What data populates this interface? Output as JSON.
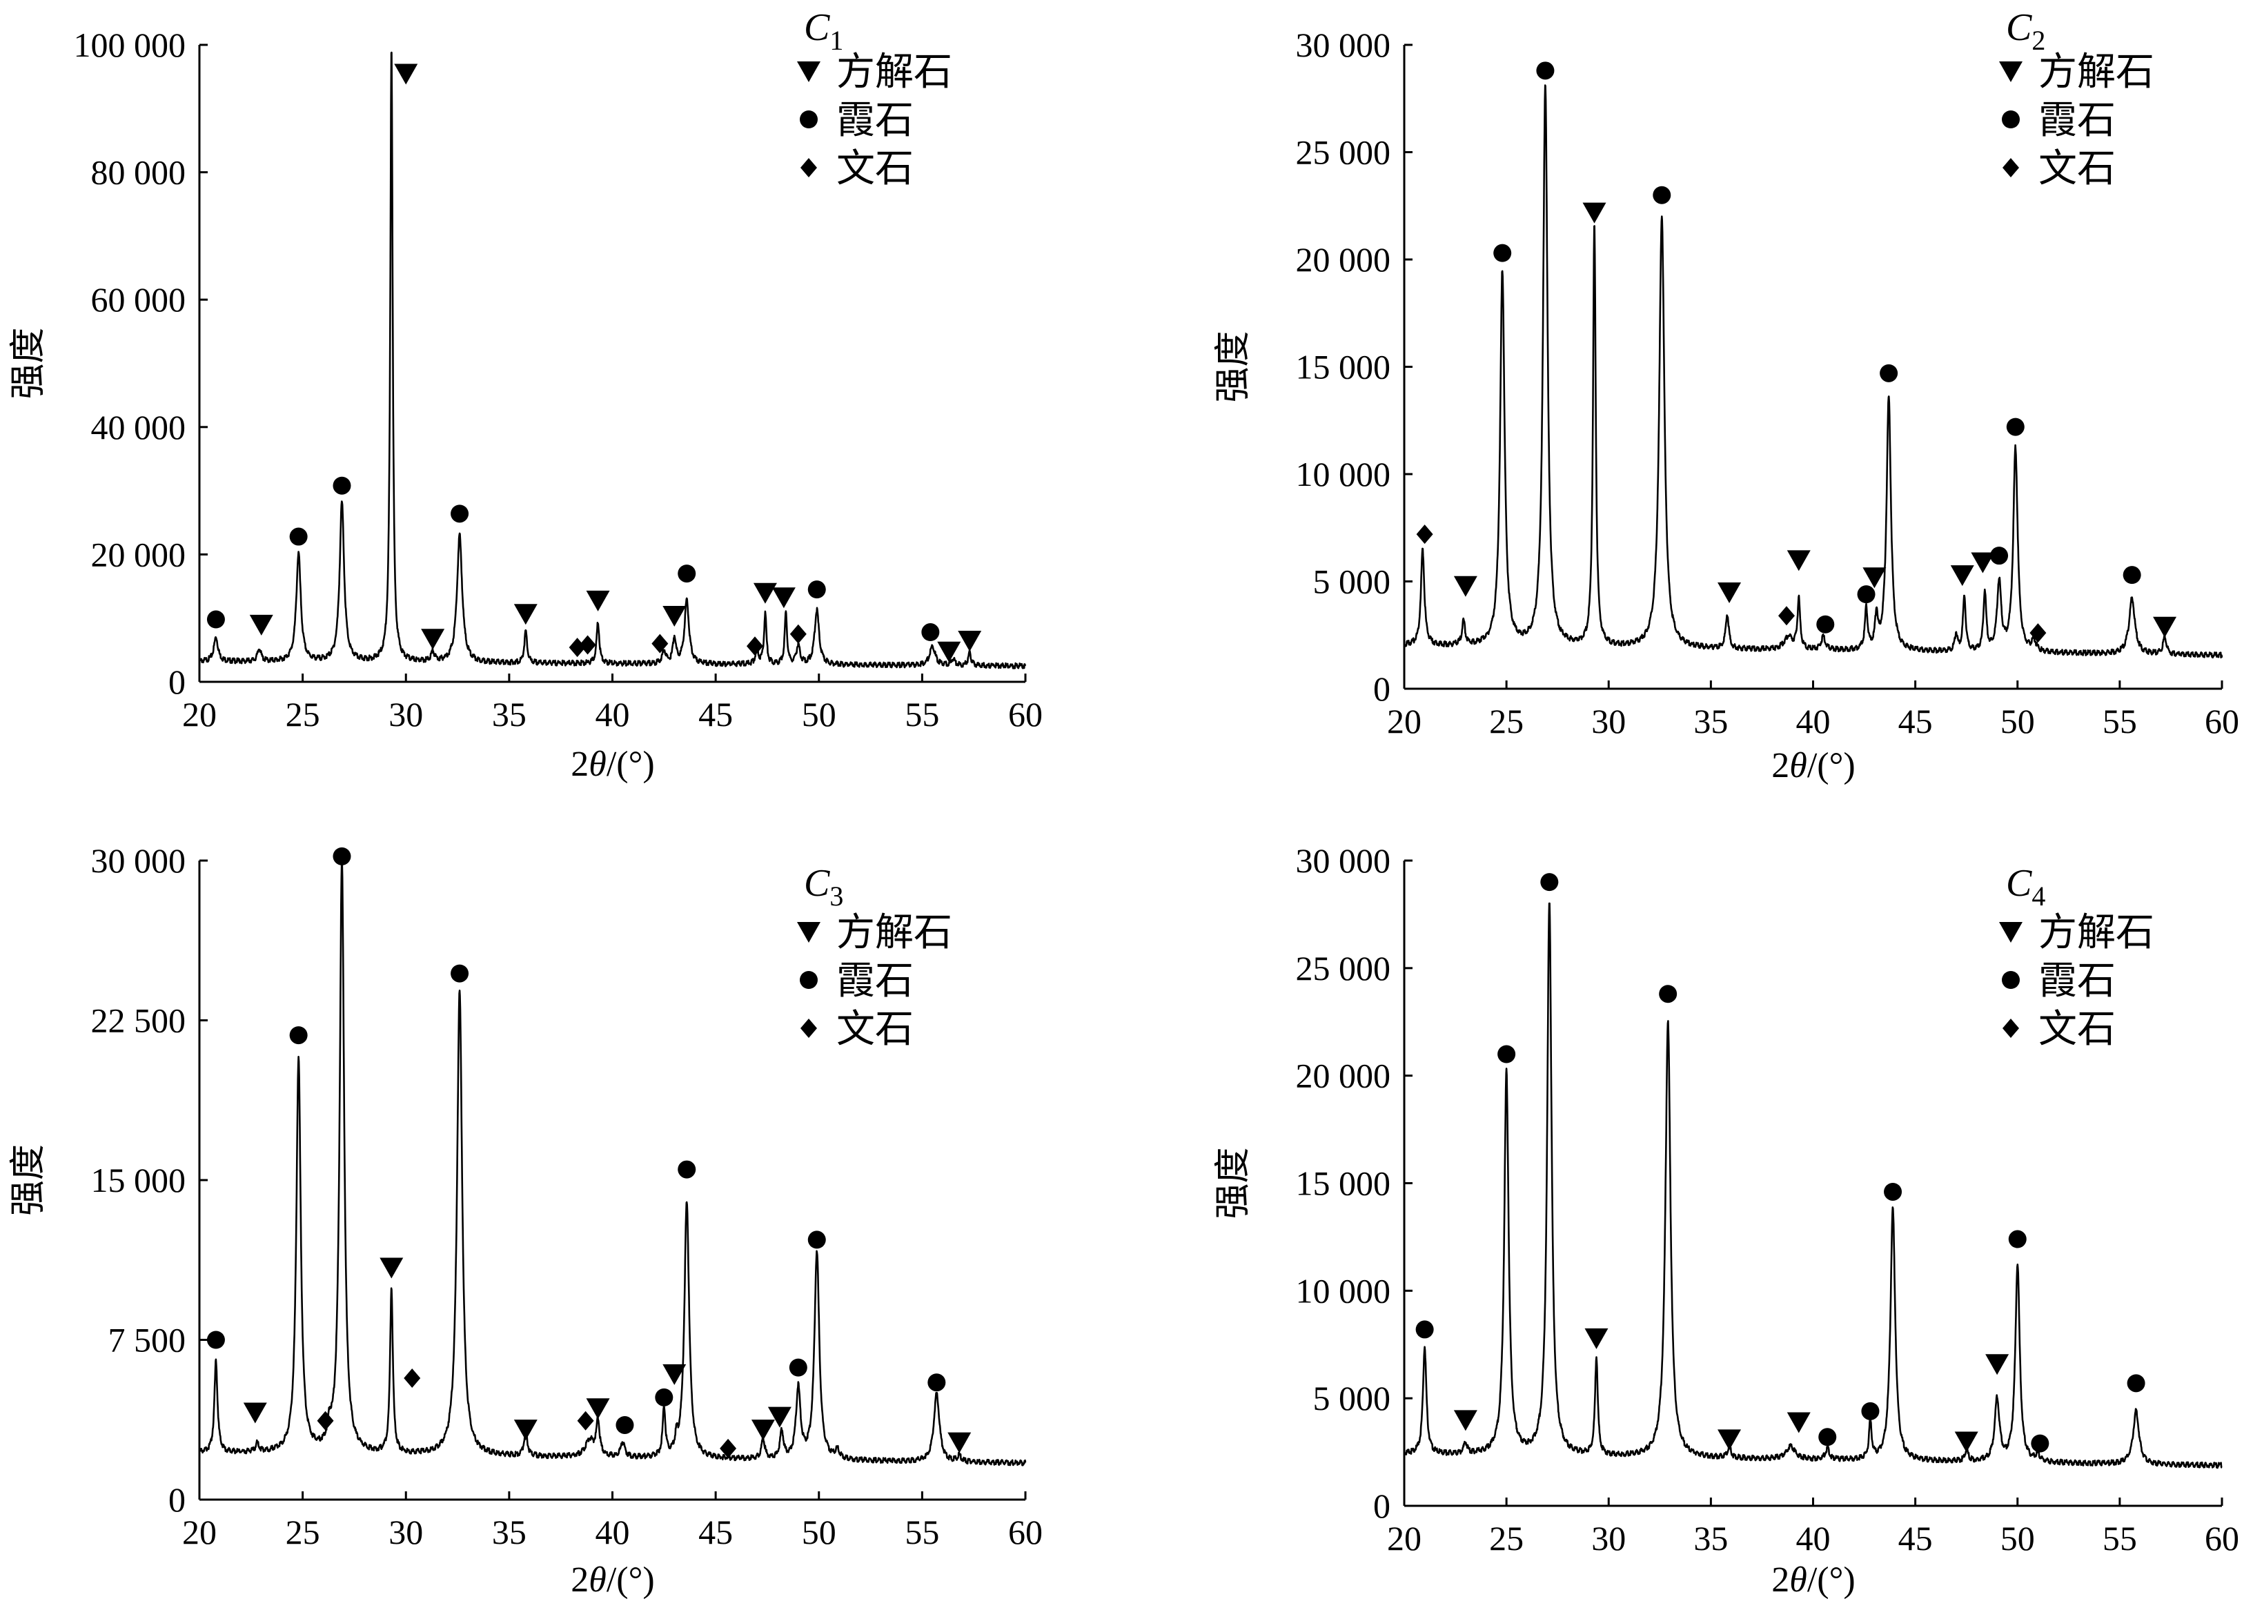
{
  "figure": {
    "background": "#ffffff",
    "line_color": "#000000"
  },
  "legend": {
    "entries": [
      {
        "name": "方解石",
        "marker": "triangle-down"
      },
      {
        "name": "霞石",
        "marker": "circle"
      },
      {
        "name": "文石",
        "marker": "diamond"
      }
    ]
  },
  "chart_data": [
    {
      "type": "line",
      "panel": "C1",
      "title_letter": "C",
      "title_sub": "1",
      "xlabel_main": "2",
      "xlabel_theta": "θ",
      "xlabel_unit": "/(°)",
      "ylabel": "强度",
      "xlim": [
        20,
        60
      ],
      "ylim": [
        0,
        100000
      ],
      "xticks": [
        20,
        25,
        30,
        35,
        40,
        45,
        50,
        55,
        60
      ],
      "xtick_labels": [
        "20",
        "25",
        "30",
        "35",
        "40",
        "45",
        "50",
        "55",
        "60"
      ],
      "yticks": [
        0,
        20000,
        40000,
        60000,
        80000,
        100000
      ],
      "ytick_labels": [
        "0",
        "20 000",
        "40 000",
        "60 000",
        "80 000",
        "100 000"
      ],
      "baseline": 3200,
      "peaks": [
        [
          20.8,
          3800,
          0.12
        ],
        [
          22.9,
          2000,
          0.1
        ],
        [
          24.8,
          17000,
          0.13
        ],
        [
          26.9,
          25000,
          0.13
        ],
        [
          29.3,
          97000,
          0.07
        ],
        [
          31.3,
          1500,
          0.1
        ],
        [
          32.6,
          20000,
          0.15
        ],
        [
          35.8,
          5000,
          0.08
        ],
        [
          39.3,
          6500,
          0.08
        ],
        [
          42.5,
          2000,
          0.1
        ],
        [
          43.0,
          4000,
          0.09
        ],
        [
          43.6,
          10000,
          0.13
        ],
        [
          47.0,
          2500,
          0.08
        ],
        [
          47.4,
          8000,
          0.07
        ],
        [
          48.4,
          8000,
          0.07
        ],
        [
          49.0,
          3000,
          0.1
        ],
        [
          49.9,
          8500,
          0.13
        ],
        [
          55.5,
          3000,
          0.16
        ],
        [
          56.5,
          1000,
          0.1
        ],
        [
          57.3,
          2000,
          0.08
        ]
      ],
      "markers": [
        {
          "type": "circle",
          "x": 20.8,
          "y": 9800
        },
        {
          "type": "triangle",
          "x": 23.0,
          "y": 9000
        },
        {
          "type": "circle",
          "x": 24.8,
          "y": 22800
        },
        {
          "type": "circle",
          "x": 26.9,
          "y": 30800
        },
        {
          "type": "triangle",
          "x": 30.0,
          "y": 95500
        },
        {
          "type": "triangle",
          "x": 31.3,
          "y": 6800
        },
        {
          "type": "circle",
          "x": 32.6,
          "y": 26400
        },
        {
          "type": "triangle",
          "x": 35.8,
          "y": 10700
        },
        {
          "type": "diamond",
          "x": 38.3,
          "y": 5400
        },
        {
          "type": "diamond",
          "x": 38.8,
          "y": 5800
        },
        {
          "type": "triangle",
          "x": 39.3,
          "y": 12800
        },
        {
          "type": "diamond",
          "x": 42.3,
          "y": 6000
        },
        {
          "type": "triangle",
          "x": 43.0,
          "y": 10400
        },
        {
          "type": "circle",
          "x": 43.6,
          "y": 17000
        },
        {
          "type": "diamond",
          "x": 46.9,
          "y": 5600
        },
        {
          "type": "triangle",
          "x": 47.4,
          "y": 14000
        },
        {
          "type": "triangle",
          "x": 48.3,
          "y": 13300
        },
        {
          "type": "diamond",
          "x": 49.0,
          "y": 7500
        },
        {
          "type": "circle",
          "x": 49.9,
          "y": 14500
        },
        {
          "type": "circle",
          "x": 55.4,
          "y": 7800
        },
        {
          "type": "triangle",
          "x": 56.3,
          "y": 4800
        },
        {
          "type": "triangle",
          "x": 57.3,
          "y": 6500
        }
      ]
    },
    {
      "type": "line",
      "panel": "C2",
      "title_letter": "C",
      "title_sub": "2",
      "xlabel_main": "2",
      "xlabel_theta": "θ",
      "xlabel_unit": "/(°)",
      "ylabel": "强度",
      "xlim": [
        20,
        60
      ],
      "ylim": [
        0,
        30000
      ],
      "xticks": [
        20,
        25,
        30,
        35,
        40,
        45,
        50,
        55,
        60
      ],
      "xtick_labels": [
        "20",
        "25",
        "30",
        "35",
        "40",
        "45",
        "50",
        "55",
        "60"
      ],
      "yticks": [
        0,
        5000,
        10000,
        15000,
        20000,
        25000,
        30000
      ],
      "ytick_labels": [
        "0",
        "5 000",
        "10 000",
        "15 000",
        "20 000",
        "25 000",
        "30 000"
      ],
      "baseline": 2000,
      "peaks": [
        [
          20.9,
          4500,
          0.1
        ],
        [
          22.9,
          1100,
          0.09
        ],
        [
          24.8,
          17500,
          0.13
        ],
        [
          26.9,
          26200,
          0.13
        ],
        [
          29.3,
          19600,
          0.08
        ],
        [
          32.6,
          20200,
          0.15
        ],
        [
          35.8,
          1600,
          0.09
        ],
        [
          38.8,
          600,
          0.25
        ],
        [
          39.3,
          2300,
          0.08
        ],
        [
          40.5,
          600,
          0.12
        ],
        [
          42.6,
          1900,
          0.08
        ],
        [
          43.1,
          1500,
          0.08
        ],
        [
          43.7,
          11800,
          0.13
        ],
        [
          47.0,
          800,
          0.08
        ],
        [
          47.4,
          2600,
          0.08
        ],
        [
          48.4,
          2800,
          0.08
        ],
        [
          49.1,
          3200,
          0.12
        ],
        [
          49.9,
          9500,
          0.13
        ],
        [
          50.8,
          500,
          0.12
        ],
        [
          55.6,
          2600,
          0.17
        ],
        [
          57.2,
          800,
          0.1
        ]
      ],
      "markers": [
        {
          "type": "diamond",
          "x": 21.0,
          "y": 7200
        },
        {
          "type": "triangle",
          "x": 23.0,
          "y": 4800
        },
        {
          "type": "circle",
          "x": 24.8,
          "y": 20300
        },
        {
          "type": "circle",
          "x": 26.9,
          "y": 28800
        },
        {
          "type": "triangle",
          "x": 29.3,
          "y": 22200
        },
        {
          "type": "circle",
          "x": 32.6,
          "y": 23000
        },
        {
          "type": "triangle",
          "x": 35.9,
          "y": 4500
        },
        {
          "type": "diamond",
          "x": 38.7,
          "y": 3400
        },
        {
          "type": "triangle",
          "x": 39.3,
          "y": 6000
        },
        {
          "type": "circle",
          "x": 40.6,
          "y": 3000
        },
        {
          "type": "circle",
          "x": 42.6,
          "y": 4400
        },
        {
          "type": "triangle",
          "x": 43.0,
          "y": 5200
        },
        {
          "type": "circle",
          "x": 43.7,
          "y": 14700
        },
        {
          "type": "triangle",
          "x": 47.3,
          "y": 5300
        },
        {
          "type": "triangle",
          "x": 48.3,
          "y": 5900
        },
        {
          "type": "circle",
          "x": 49.1,
          "y": 6200
        },
        {
          "type": "circle",
          "x": 49.9,
          "y": 12200
        },
        {
          "type": "diamond",
          "x": 51.0,
          "y": 2600
        },
        {
          "type": "circle",
          "x": 55.6,
          "y": 5300
        },
        {
          "type": "triangle",
          "x": 57.2,
          "y": 2900
        }
      ]
    },
    {
      "type": "line",
      "panel": "C3",
      "title_letter": "C",
      "title_sub": "3",
      "xlabel_main": "2",
      "xlabel_theta": "θ",
      "xlabel_unit": "/(°)",
      "ylabel": "强度",
      "xlim": [
        20,
        60
      ],
      "ylim": [
        0,
        30000
      ],
      "xticks": [
        20,
        25,
        30,
        35,
        40,
        45,
        50,
        55,
        60
      ],
      "xtick_labels": [
        "20",
        "25",
        "30",
        "35",
        "40",
        "45",
        "50",
        "55",
        "60"
      ],
      "yticks": [
        0,
        7500,
        15000,
        22500,
        30000
      ],
      "ytick_labels": [
        "0",
        "7 500",
        "15 000",
        "22 500",
        "30 000"
      ],
      "baseline": 2200,
      "peaks": [
        [
          20.8,
          4300,
          0.09
        ],
        [
          22.8,
          400,
          0.1
        ],
        [
          24.8,
          18500,
          0.13
        ],
        [
          26.3,
          800,
          0.1
        ],
        [
          26.9,
          27800,
          0.13
        ],
        [
          29.3,
          7800,
          0.08
        ],
        [
          32.6,
          21800,
          0.15
        ],
        [
          35.8,
          1200,
          0.09
        ],
        [
          38.9,
          800,
          0.25
        ],
        [
          39.3,
          1600,
          0.1
        ],
        [
          40.5,
          700,
          0.12
        ],
        [
          42.5,
          2300,
          0.08
        ],
        [
          43.1,
          600,
          0.08
        ],
        [
          43.6,
          12000,
          0.14
        ],
        [
          47.3,
          900,
          0.1
        ],
        [
          48.2,
          1300,
          0.1
        ],
        [
          49.0,
          3300,
          0.13
        ],
        [
          49.9,
          9800,
          0.14
        ],
        [
          50.9,
          400,
          0.12
        ],
        [
          55.7,
          3200,
          0.16
        ],
        [
          56.8,
          300,
          0.1
        ]
      ],
      "markers": [
        {
          "type": "circle",
          "x": 20.8,
          "y": 7500
        },
        {
          "type": "triangle",
          "x": 22.7,
          "y": 4100
        },
        {
          "type": "circle",
          "x": 24.8,
          "y": 21800
        },
        {
          "type": "diamond",
          "x": 26.1,
          "y": 3700
        },
        {
          "type": "circle",
          "x": 26.9,
          "y": 30200
        },
        {
          "type": "triangle",
          "x": 29.3,
          "y": 10900
        },
        {
          "type": "diamond",
          "x": 30.3,
          "y": 5700
        },
        {
          "type": "circle",
          "x": 32.6,
          "y": 24700
        },
        {
          "type": "triangle",
          "x": 35.8,
          "y": 3300
        },
        {
          "type": "diamond",
          "x": 38.7,
          "y": 3700
        },
        {
          "type": "triangle",
          "x": 39.3,
          "y": 4300
        },
        {
          "type": "circle",
          "x": 40.6,
          "y": 3500
        },
        {
          "type": "circle",
          "x": 42.5,
          "y": 4800
        },
        {
          "type": "triangle",
          "x": 43.0,
          "y": 5900
        },
        {
          "type": "circle",
          "x": 43.6,
          "y": 15500
        },
        {
          "type": "diamond",
          "x": 45.6,
          "y": 2400
        },
        {
          "type": "triangle",
          "x": 47.3,
          "y": 3300
        },
        {
          "type": "triangle",
          "x": 48.1,
          "y": 3900
        },
        {
          "type": "circle",
          "x": 49.0,
          "y": 6200
        },
        {
          "type": "circle",
          "x": 49.9,
          "y": 12200
        },
        {
          "type": "circle",
          "x": 55.7,
          "y": 5500
        },
        {
          "type": "triangle",
          "x": 56.8,
          "y": 2700
        }
      ]
    },
    {
      "type": "line",
      "panel": "C4",
      "title_letter": "C",
      "title_sub": "4",
      "xlabel_main": "2",
      "xlabel_theta": "θ",
      "xlabel_unit": "/(°)",
      "ylabel": "强度",
      "xlim": [
        20,
        60
      ],
      "ylim": [
        0,
        30000
      ],
      "xticks": [
        20,
        25,
        30,
        35,
        40,
        45,
        50,
        55,
        60
      ],
      "xtick_labels": [
        "20",
        "25",
        "30",
        "35",
        "40",
        "45",
        "50",
        "55",
        "60"
      ],
      "yticks": [
        0,
        5000,
        10000,
        15000,
        20000,
        25000,
        30000
      ],
      "ytick_labels": [
        "0",
        "5 000",
        "10 000",
        "15 000",
        "20 000",
        "25 000",
        "30 000"
      ],
      "baseline": 2400,
      "peaks": [
        [
          21.0,
          5000,
          0.1
        ],
        [
          23.0,
          500,
          0.1
        ],
        [
          25.0,
          17800,
          0.13
        ],
        [
          27.1,
          25800,
          0.13
        ],
        [
          29.4,
          4600,
          0.08
        ],
        [
          32.9,
          20300,
          0.15
        ],
        [
          35.9,
          500,
          0.1
        ],
        [
          38.9,
          600,
          0.25
        ],
        [
          40.7,
          500,
          0.12
        ],
        [
          42.8,
          1700,
          0.08
        ],
        [
          43.9,
          11700,
          0.14
        ],
        [
          47.5,
          500,
          0.1
        ],
        [
          49.0,
          2900,
          0.14
        ],
        [
          50.0,
          9200,
          0.13
        ],
        [
          51.0,
          300,
          0.12
        ],
        [
          55.8,
          2500,
          0.17
        ]
      ],
      "markers": [
        {
          "type": "circle",
          "x": 21.0,
          "y": 8200
        },
        {
          "type": "triangle",
          "x": 23.0,
          "y": 4000
        },
        {
          "type": "circle",
          "x": 25.0,
          "y": 21000
        },
        {
          "type": "circle",
          "x": 27.1,
          "y": 29000
        },
        {
          "type": "triangle",
          "x": 29.4,
          "y": 7800
        },
        {
          "type": "circle",
          "x": 32.9,
          "y": 23800
        },
        {
          "type": "triangle",
          "x": 35.9,
          "y": 3100
        },
        {
          "type": "triangle",
          "x": 39.3,
          "y": 3900
        },
        {
          "type": "circle",
          "x": 40.7,
          "y": 3200
        },
        {
          "type": "circle",
          "x": 42.8,
          "y": 4400
        },
        {
          "type": "circle",
          "x": 43.9,
          "y": 14600
        },
        {
          "type": "triangle",
          "x": 47.5,
          "y": 3000
        },
        {
          "type": "triangle",
          "x": 49.0,
          "y": 6600
        },
        {
          "type": "circle",
          "x": 50.0,
          "y": 12400
        },
        {
          "type": "circle",
          "x": 51.1,
          "y": 2900
        },
        {
          "type": "circle",
          "x": 55.8,
          "y": 5700
        }
      ]
    }
  ]
}
